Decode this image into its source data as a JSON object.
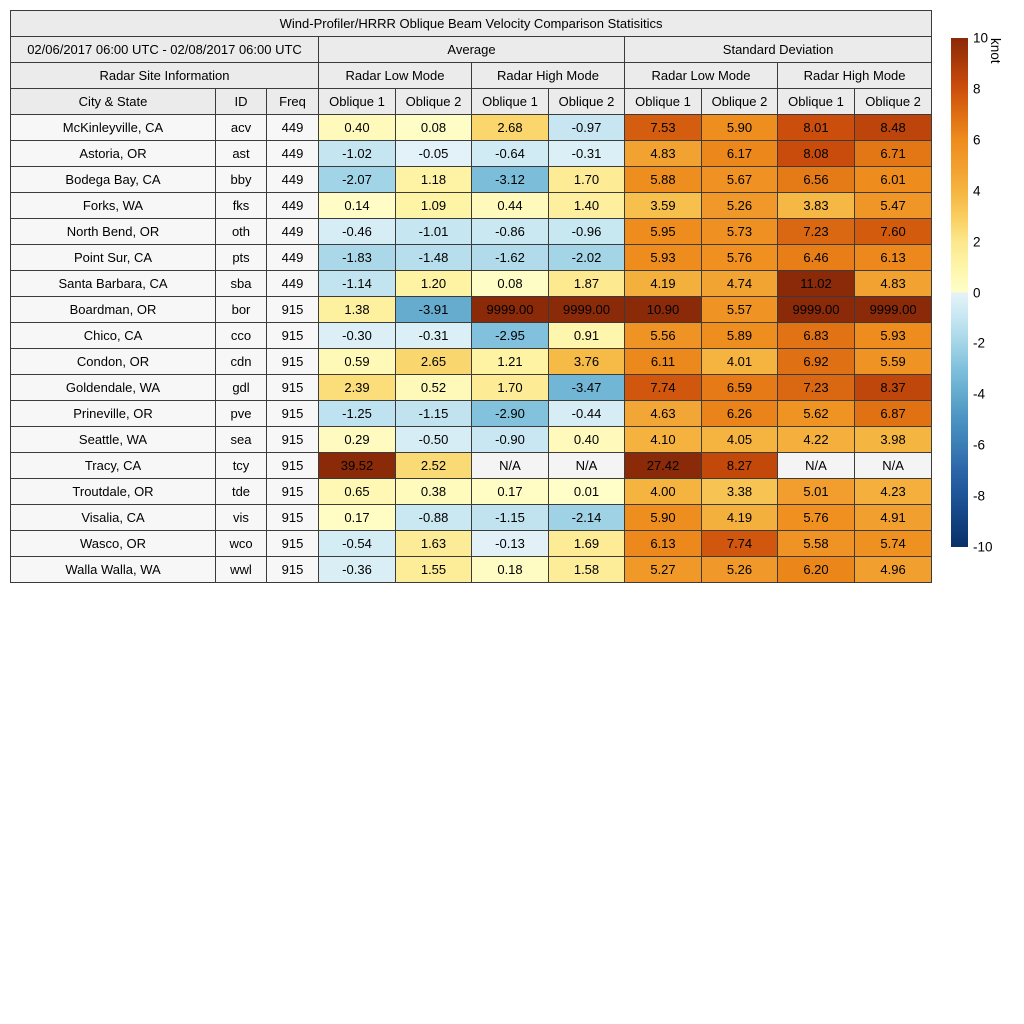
{
  "chart_data": {
    "type": "heatmap",
    "title": "Wind-Profiler/HRRR Oblique Beam Velocity Comparison Statisitics",
    "period": "02/06/2017 06:00 UTC - 02/08/2017 06:00 UTC",
    "row_header": "Radar Site Information",
    "stat_groups": [
      "Average",
      "Standard Deviation"
    ],
    "mode_groups": [
      "Radar Low Mode",
      "Radar High Mode",
      "Radar Low Mode",
      "Radar High Mode"
    ],
    "columns": [
      "City & State",
      "ID",
      "Freq",
      "Oblique 1",
      "Oblique 2",
      "Oblique 1",
      "Oblique 2",
      "Oblique 1",
      "Oblique 2",
      "Oblique 1",
      "Oblique 2"
    ],
    "rows": [
      {
        "city": "McKinleyville, CA",
        "id": "acv",
        "freq": "449",
        "values": [
          0.4,
          0.08,
          2.68,
          -0.97,
          7.53,
          5.9,
          8.01,
          8.48
        ]
      },
      {
        "city": "Astoria, OR",
        "id": "ast",
        "freq": "449",
        "values": [
          -1.02,
          -0.05,
          -0.64,
          -0.31,
          4.83,
          6.17,
          8.08,
          6.71
        ]
      },
      {
        "city": "Bodega Bay, CA",
        "id": "bby",
        "freq": "449",
        "values": [
          -2.07,
          1.18,
          -3.12,
          1.7,
          5.88,
          5.67,
          6.56,
          6.01
        ]
      },
      {
        "city": "Forks, WA",
        "id": "fks",
        "freq": "449",
        "values": [
          0.14,
          1.09,
          0.44,
          1.4,
          3.59,
          5.26,
          3.83,
          5.47
        ]
      },
      {
        "city": "North Bend, OR",
        "id": "oth",
        "freq": "449",
        "values": [
          -0.46,
          -1.01,
          -0.86,
          -0.96,
          5.95,
          5.73,
          7.23,
          7.6
        ]
      },
      {
        "city": "Point Sur, CA",
        "id": "pts",
        "freq": "449",
        "values": [
          -1.83,
          -1.48,
          -1.62,
          -2.02,
          5.93,
          5.76,
          6.46,
          6.13
        ]
      },
      {
        "city": "Santa Barbara, CA",
        "id": "sba",
        "freq": "449",
        "values": [
          -1.14,
          1.2,
          0.08,
          1.87,
          4.19,
          4.74,
          11.02,
          4.83
        ]
      },
      {
        "city": "Boardman, OR",
        "id": "bor",
        "freq": "915",
        "values": [
          1.38,
          -3.91,
          9999.0,
          9999.0,
          10.9,
          5.57,
          9999.0,
          9999.0
        ]
      },
      {
        "city": "Chico, CA",
        "id": "cco",
        "freq": "915",
        "values": [
          -0.3,
          -0.31,
          -2.95,
          0.91,
          5.56,
          5.89,
          6.83,
          5.93
        ]
      },
      {
        "city": "Condon, OR",
        "id": "cdn",
        "freq": "915",
        "values": [
          0.59,
          2.65,
          1.21,
          3.76,
          6.11,
          4.01,
          6.92,
          5.59
        ]
      },
      {
        "city": "Goldendale, WA",
        "id": "gdl",
        "freq": "915",
        "values": [
          2.39,
          0.52,
          1.7,
          -3.47,
          7.74,
          6.59,
          7.23,
          8.37
        ]
      },
      {
        "city": "Prineville, OR",
        "id": "pve",
        "freq": "915",
        "values": [
          -1.25,
          -1.15,
          -2.9,
          -0.44,
          4.63,
          6.26,
          5.62,
          6.87
        ]
      },
      {
        "city": "Seattle, WA",
        "id": "sea",
        "freq": "915",
        "values": [
          0.29,
          -0.5,
          -0.9,
          0.4,
          4.1,
          4.05,
          4.22,
          3.98
        ]
      },
      {
        "city": "Tracy, CA",
        "id": "tcy",
        "freq": "915",
        "values": [
          39.52,
          2.52,
          "N/A",
          "N/A",
          27.42,
          8.27,
          "N/A",
          "N/A"
        ]
      },
      {
        "city": "Troutdale, OR",
        "id": "tde",
        "freq": "915",
        "values": [
          0.65,
          0.38,
          0.17,
          0.01,
          4.0,
          3.38,
          5.01,
          4.23
        ]
      },
      {
        "city": "Visalia, CA",
        "id": "vis",
        "freq": "915",
        "values": [
          0.17,
          -0.88,
          -1.15,
          -2.14,
          5.9,
          4.19,
          5.76,
          4.91
        ]
      },
      {
        "city": "Wasco, OR",
        "id": "wco",
        "freq": "915",
        "values": [
          -0.54,
          1.63,
          -0.13,
          1.69,
          6.13,
          7.74,
          5.58,
          5.74
        ]
      },
      {
        "city": "Walla Walla, WA",
        "id": "wwl",
        "freq": "915",
        "values": [
          -0.36,
          1.55,
          0.18,
          1.58,
          5.27,
          5.26,
          6.2,
          4.96
        ]
      }
    ],
    "na_label": "N/A",
    "na_color": "#f4f4f4",
    "colorbar": {
      "label": "knot",
      "ticks": [
        10,
        8,
        6,
        4,
        2,
        0,
        -2,
        -4,
        -6,
        -8,
        -10
      ],
      "min": -10,
      "max": 10
    },
    "colormap": {
      "negative": [
        [
          -10,
          "#0A3168"
        ],
        [
          -9,
          "#12417F"
        ],
        [
          -8,
          "#1E5499"
        ],
        [
          -7,
          "#2B66A8"
        ],
        [
          -6,
          "#3B7EB6"
        ],
        [
          -5,
          "#4A93C2"
        ],
        [
          -4,
          "#64AACE"
        ],
        [
          -3,
          "#7FC0DC"
        ],
        [
          -2,
          "#A4D5E7"
        ],
        [
          -1,
          "#C6E6F1"
        ],
        [
          0,
          "#E5F3F8"
        ]
      ],
      "positive": [
        [
          0,
          "#FFFEC9"
        ],
        [
          1,
          "#FEF5A9"
        ],
        [
          2,
          "#FCE78C"
        ],
        [
          3,
          "#F9CE5E"
        ],
        [
          4,
          "#F5B440"
        ],
        [
          5,
          "#F19E2E"
        ],
        [
          6,
          "#EE8C1D"
        ],
        [
          7,
          "#DE6E12"
        ],
        [
          8,
          "#CC4E0C"
        ],
        [
          9,
          "#AC3B09"
        ],
        [
          10,
          "#8B2A08"
        ]
      ]
    }
  }
}
